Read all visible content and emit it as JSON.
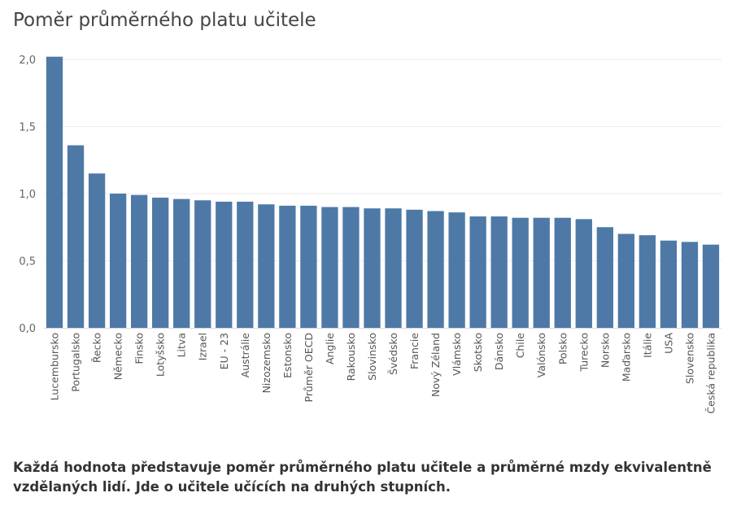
{
  "chart_data": {
    "type": "bar",
    "title": "Poměr průměrného platu učitele",
    "xlabel": "",
    "ylabel": "",
    "ylim": [
      0,
      2.0
    ],
    "yticks": [
      "0,0",
      "0,5",
      "1,0",
      "1,5",
      "2,0"
    ],
    "ytick_values": [
      0,
      0.5,
      1.0,
      1.5,
      2.0
    ],
    "grid": true,
    "bar_color": "#4e79a7",
    "categories": [
      "Lucembursko",
      "Portugalsko",
      "Řecko",
      "Německo",
      "Finsko",
      "Lotyšsko",
      "Litva",
      "Izrael",
      "EU - 23",
      "Austrálie",
      "Nizozemsko",
      "Estonsko",
      "Průměr OECD",
      "Anglie",
      "Rakousko",
      "Slovinsko",
      "Švédsko",
      "Francie",
      "Nový Zéland",
      "Vlámsko",
      "Skotsko",
      "Dánsko",
      "Chile",
      "Valónsko",
      "Polsko",
      "Turecko",
      "Norsko",
      "Maďarsko",
      "Itálie",
      "USA",
      "Slovensko",
      "Česká republika"
    ],
    "values": [
      2.02,
      1.36,
      1.15,
      1.0,
      0.99,
      0.97,
      0.96,
      0.95,
      0.94,
      0.94,
      0.92,
      0.91,
      0.91,
      0.9,
      0.9,
      0.89,
      0.89,
      0.88,
      0.87,
      0.86,
      0.83,
      0.83,
      0.82,
      0.82,
      0.82,
      0.81,
      0.75,
      0.7,
      0.69,
      0.65,
      0.64,
      0.62
    ]
  },
  "caption": "Každá hodnota představuje poměr průměrného platu učitele a průměrné mzdy ekvivalentně vzdělaných lidí. Jde o učitele učících na druhých stupních."
}
